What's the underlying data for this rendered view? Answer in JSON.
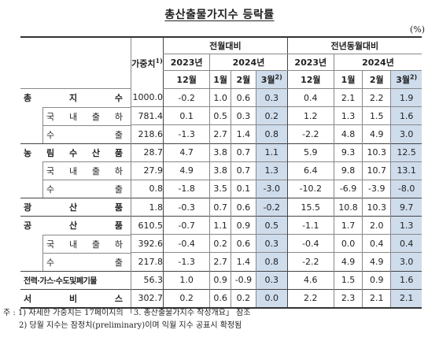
{
  "title": "총산출물가지수 등락률",
  "unit": "(%)",
  "header": {
    "weight_label": "가중치",
    "weight_sup": "1)",
    "mom_label": "전월대비",
    "yoy_label": "전년동월대비",
    "year_2023": "2023년",
    "year_2024": "2024년",
    "months": [
      "12월",
      "1월",
      "2월",
      "3월"
    ],
    "prelim_sup": "2)"
  },
  "rows": [
    {
      "label": "총 지 수",
      "weight": "1000.0",
      "mom": [
        "-0.2",
        "1.0",
        "0.6",
        "0.3"
      ],
      "yoy": [
        "0.4",
        "2.1",
        "2.2",
        "1.9"
      ]
    },
    {
      "label": "국 내 출 하",
      "weight": "781.4",
      "mom": [
        "0.1",
        "0.5",
        "0.3",
        "0.2"
      ],
      "yoy": [
        "1.2",
        "1.3",
        "1.5",
        "1.6"
      ]
    },
    {
      "label": "수 출",
      "weight": "218.6",
      "mom": [
        "-1.3",
        "2.7",
        "1.4",
        "0.8"
      ],
      "yoy": [
        "-2.2",
        "4.8",
        "4.9",
        "3.0"
      ]
    },
    {
      "label": "농 림 수 산 품",
      "weight": "28.7",
      "mom": [
        "4.7",
        "3.8",
        "0.7",
        "1.1"
      ],
      "yoy": [
        "5.9",
        "9.3",
        "10.3",
        "12.5"
      ]
    },
    {
      "label": "국 내 출 하",
      "weight": "27.9",
      "mom": [
        "4.9",
        "3.8",
        "0.7",
        "1.3"
      ],
      "yoy": [
        "6.4",
        "9.8",
        "10.7",
        "13.1"
      ]
    },
    {
      "label": "수 출",
      "weight": "0.8",
      "mom": [
        "-1.8",
        "3.5",
        "0.1",
        "-3.0"
      ],
      "yoy": [
        "-10.2",
        "-6.9",
        "-3.9",
        "-8.0"
      ]
    },
    {
      "label": "광 산 품",
      "weight": "1.8",
      "mom": [
        "-0.3",
        "0.7",
        "0.6",
        "-0.2"
      ],
      "yoy": [
        "15.5",
        "10.8",
        "10.3",
        "9.7"
      ]
    },
    {
      "label": "공 산 품",
      "weight": "610.5",
      "mom": [
        "-0.7",
        "1.1",
        "0.9",
        "0.5"
      ],
      "yoy": [
        "-1.1",
        "1.7",
        "2.0",
        "1.3"
      ]
    },
    {
      "label": "국 내 출 하",
      "weight": "392.6",
      "mom": [
        "-0.4",
        "0.2",
        "0.6",
        "0.3"
      ],
      "yoy": [
        "-0.4",
        "0.0",
        "0.4",
        "0.4"
      ]
    },
    {
      "label": "수 출",
      "weight": "217.8",
      "mom": [
        "-1.3",
        "2.7",
        "1.4",
        "0.8"
      ],
      "yoy": [
        "-2.2",
        "4.9",
        "4.9",
        "3.0"
      ]
    },
    {
      "label": "전력·가스·수도및폐기물",
      "weight": "56.3",
      "mom": [
        "1.0",
        "0.9",
        "-0.9",
        "0.3"
      ],
      "yoy": [
        "4.6",
        "1.5",
        "0.9",
        "1.6"
      ]
    },
    {
      "label": "서 비 스",
      "weight": "302.7",
      "mom": [
        "0.2",
        "0.6",
        "0.2",
        "0.0"
      ],
      "yoy": [
        "2.2",
        "2.3",
        "2.1",
        "2.1"
      ]
    }
  ],
  "notes": [
    "주 : 1) 자세한 가중치는 17페이지의 「3. 총산출물가지수 작성개요」 참조",
    "2) 당월 지수는 잠정치(preliminary)이며 익월 지수 공표시 확정됨"
  ],
  "colors": {
    "highlight_column": "#cfdcec",
    "rule": "#333333"
  }
}
